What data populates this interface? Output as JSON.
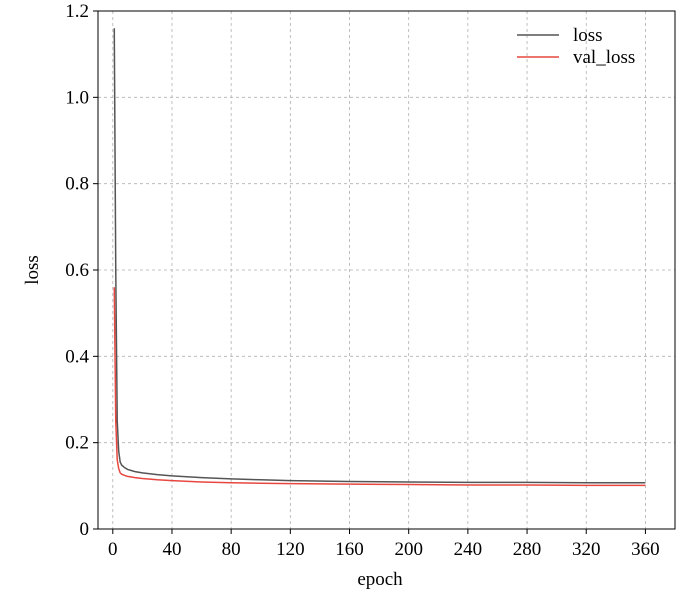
{
  "chart_data": {
    "type": "line",
    "x_label": "epoch",
    "y_label": "loss",
    "x": [
      1,
      2,
      3,
      4,
      5,
      6,
      8,
      10,
      15,
      20,
      30,
      40,
      60,
      80,
      100,
      120,
      160,
      200,
      240,
      280,
      320,
      360
    ],
    "series": [
      {
        "name": "loss",
        "color": "#555555",
        "values": [
          1.16,
          0.6,
          0.25,
          0.18,
          0.155,
          0.148,
          0.142,
          0.138,
          0.133,
          0.13,
          0.126,
          0.123,
          0.119,
          0.116,
          0.114,
          0.112,
          0.11,
          0.109,
          0.108,
          0.108,
          0.107,
          0.107
        ]
      },
      {
        "name": "val_loss",
        "color": "#e8473f",
        "values": [
          0.56,
          0.25,
          0.16,
          0.14,
          0.13,
          0.127,
          0.124,
          0.122,
          0.119,
          0.117,
          0.114,
          0.112,
          0.109,
          0.107,
          0.106,
          0.105,
          0.104,
          0.103,
          0.102,
          0.102,
          0.101,
          0.101
        ]
      }
    ],
    "xlim": [
      -10,
      380
    ],
    "ylim": [
      0,
      1.2
    ],
    "xticks": [
      0,
      40,
      80,
      120,
      160,
      200,
      240,
      280,
      320,
      360
    ],
    "yticks": [
      0,
      0.2,
      0.4,
      0.6,
      0.8,
      {
        "value": 1,
        "label": "1.0"
      },
      1.2
    ],
    "grid": true,
    "legend": "upper-right"
  }
}
